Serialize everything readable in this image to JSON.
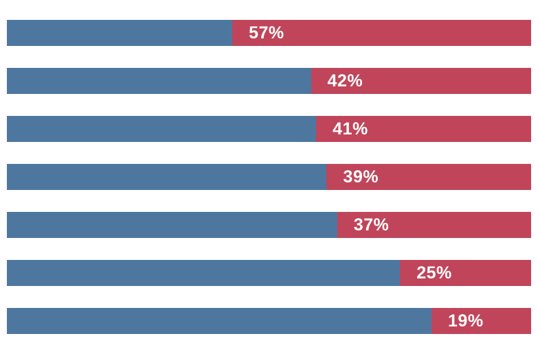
{
  "chart_data": {
    "type": "bar",
    "orientation": "horizontal",
    "stacked": true,
    "xlim": [
      0,
      100
    ],
    "grid": false,
    "legend": "none",
    "axis_labels_visible": false,
    "rows": [
      {
        "label": "57%",
        "value": 57,
        "remainder": 43
      },
      {
        "label": "42%",
        "value": 42,
        "remainder": 58
      },
      {
        "label": "41%",
        "value": 41,
        "remainder": 59
      },
      {
        "label": "39%",
        "value": 39,
        "remainder": 61
      },
      {
        "label": "37%",
        "value": 37,
        "remainder": 63
      },
      {
        "label": "25%",
        "value": 25,
        "remainder": 75
      },
      {
        "label": "19%",
        "value": 19,
        "remainder": 81
      }
    ],
    "series": [
      {
        "name": "remainder-segment",
        "color": "#4e77a0"
      },
      {
        "name": "value-segment",
        "color": "#c0455a"
      }
    ],
    "value_label_color": "#ffffff"
  }
}
